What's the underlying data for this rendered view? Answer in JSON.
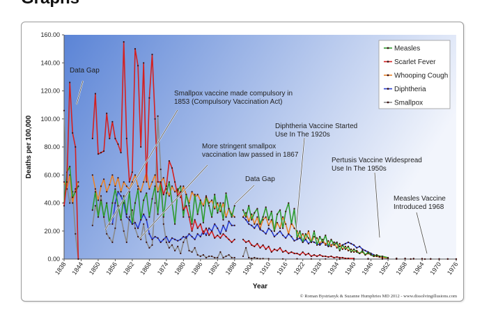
{
  "page": {
    "title": "Graphs"
  },
  "credit": "© Roman Bystrianyk & Suzanne Humphries MD 2012 - www.dissolvingillusions.com",
  "colors": {
    "plot_bg_left": "#5b84d6",
    "plot_bg_right": "#f2f5fc",
    "Measles": "#2e9a2e",
    "Scarlet Fever": "#d42020",
    "Whooping Cough": "#e8822a",
    "Diphtheria": "#2a3ed0",
    "Smallpox": "#8a8a8a"
  },
  "annotations": [
    {
      "id": "gap1",
      "lines": [
        "Data Gap"
      ]
    },
    {
      "id": "smallpox1853",
      "lines": [
        "Smallpox vaccine made compulsory in",
        "1853 (Compulsory Vaccination Act)"
      ]
    },
    {
      "id": "smallpox1867",
      "lines": [
        "More stringent smallpox",
        "vaccination law passed in 1867"
      ]
    },
    {
      "id": "gap2",
      "lines": [
        "Data Gap"
      ]
    },
    {
      "id": "diphtheria",
      "lines": [
        "Diphtheria Vaccine Started",
        "Use In The 1920s"
      ]
    },
    {
      "id": "pertussis",
      "lines": [
        "Pertusis Vaccine Widespread",
        "Use In The 1950s"
      ]
    },
    {
      "id": "measles",
      "lines": [
        "Measles Vaccine",
        "Introduced 1968"
      ]
    }
  ],
  "chart_data": {
    "type": "line",
    "title": "",
    "xlabel": "Year",
    "ylabel": "Deaths per 100,000",
    "xlim": [
      1838,
      1976
    ],
    "ylim": [
      0,
      160
    ],
    "yticks": [
      "0.00",
      "20.00",
      "40.00",
      "60.00",
      "80.00",
      "100.00",
      "120.00",
      "140.00",
      "160.00"
    ],
    "xticks": [
      "1838",
      "1844",
      "1850",
      "1856",
      "1862",
      "1868",
      "1874",
      "1880",
      "1886",
      "1892",
      "1898",
      "1904",
      "1910",
      "1916",
      "1922",
      "1928",
      "1934",
      "1940",
      "1946",
      "1952",
      "1958",
      "1964",
      "1970",
      "1976"
    ],
    "grid": false,
    "legend_position": "top-right",
    "series": [
      {
        "name": "Measles",
        "x": [
          1838,
          1839,
          1840,
          1841,
          1842,
          1843,
          1848,
          1849,
          1850,
          1851,
          1852,
          1853,
          1854,
          1855,
          1856,
          1857,
          1858,
          1859,
          1860,
          1861,
          1862,
          1863,
          1864,
          1865,
          1866,
          1867,
          1868,
          1869,
          1870,
          1871,
          1872,
          1873,
          1874,
          1875,
          1876,
          1877,
          1878,
          1879,
          1880,
          1881,
          1882,
          1883,
          1884,
          1885,
          1886,
          1887,
          1888,
          1889,
          1890,
          1891,
          1892,
          1893,
          1894,
          1895,
          1896,
          1897,
          1898,
          1901,
          1902,
          1903,
          1904,
          1905,
          1906,
          1907,
          1908,
          1909,
          1910,
          1911,
          1912,
          1913,
          1914,
          1915,
          1916,
          1917,
          1918,
          1919,
          1920,
          1921,
          1922,
          1923,
          1924,
          1925,
          1926,
          1927,
          1928,
          1929,
          1930,
          1931,
          1932,
          1933,
          1934,
          1935,
          1936,
          1937,
          1938,
          1939,
          1940,
          1941,
          1942,
          1943,
          1944,
          1945,
          1946,
          1947,
          1948,
          1949,
          1950,
          1952,
          1955,
          1958,
          1961,
          1964,
          1967,
          1970,
          1973,
          1976
        ],
        "values": [
          40,
          62,
          66,
          44,
          48,
          52,
          35,
          48,
          30,
          42,
          30,
          40,
          25,
          40,
          50,
          38,
          28,
          45,
          32,
          48,
          25,
          40,
          50,
          28,
          42,
          47,
          30,
          43,
          52,
          32,
          54,
          30,
          47,
          55,
          40,
          25,
          49,
          52,
          30,
          46,
          38,
          25,
          46,
          32,
          42,
          26,
          44,
          38,
          30,
          46,
          33,
          40,
          28,
          47,
          36,
          30,
          38,
          35,
          30,
          38,
          28,
          33,
          36,
          25,
          30,
          37,
          28,
          34,
          20,
          32,
          35,
          22,
          34,
          40,
          25,
          36,
          15,
          20,
          12,
          18,
          15,
          12,
          20,
          10,
          16,
          12,
          17,
          9,
          14,
          10,
          12,
          6,
          10,
          7,
          9,
          5,
          7,
          5,
          4,
          6,
          3,
          5,
          3,
          2,
          3,
          2,
          2,
          1,
          0.5,
          0.5,
          0.3,
          0.3,
          0.2,
          0.1,
          0.1,
          0
        ]
      },
      {
        "name": "Scarlet Fever",
        "x": [
          1838,
          1839,
          1840,
          1841,
          1842,
          1843,
          1848,
          1849,
          1850,
          1851,
          1852,
          1853,
          1854,
          1855,
          1856,
          1857,
          1858,
          1859,
          1860,
          1861,
          1862,
          1863,
          1864,
          1865,
          1866,
          1867,
          1868,
          1869,
          1870,
          1871,
          1872,
          1873,
          1874,
          1875,
          1876,
          1877,
          1878,
          1879,
          1880,
          1881,
          1882,
          1883,
          1884,
          1885,
          1886,
          1887,
          1888,
          1889,
          1890,
          1891,
          1892,
          1893,
          1894,
          1895,
          1896,
          1897,
          1898,
          1901,
          1902,
          1903,
          1904,
          1905,
          1906,
          1907,
          1908,
          1909,
          1910,
          1911,
          1912,
          1913,
          1914,
          1915,
          1916,
          1917,
          1918,
          1919,
          1920,
          1921,
          1922,
          1923,
          1924,
          1925,
          1926,
          1927,
          1928,
          1929,
          1930,
          1931,
          1932,
          1933,
          1934,
          1935,
          1936,
          1937,
          1938,
          1940,
          1945,
          1950,
          1955,
          1960,
          1965,
          1970,
          1976
        ],
        "values": [
          38,
          55,
          126,
          90,
          80,
          0,
          86,
          118,
          75,
          76,
          77,
          104,
          86,
          98,
          86,
          82,
          76,
          155,
          86,
          55,
          62,
          150,
          138,
          80,
          140,
          55,
          115,
          146,
          100,
          55,
          55,
          46,
          52,
          70,
          65,
          55,
          45,
          48,
          35,
          38,
          30,
          20,
          28,
          22,
          25,
          18,
          22,
          17,
          20,
          15,
          17,
          15,
          18,
          16,
          14,
          12,
          14,
          14,
          12,
          13,
          10,
          9,
          11,
          8,
          10,
          7,
          9,
          5,
          7,
          6,
          8,
          5,
          6,
          4,
          5,
          4,
          4,
          3,
          5,
          3,
          4,
          2,
          3,
          2,
          3,
          2,
          2,
          1.5,
          2,
          1,
          1.5,
          1,
          1,
          0.5,
          0.5,
          0.4,
          0.3,
          0.2,
          0.1,
          0.1,
          0,
          0,
          0
        ]
      },
      {
        "name": "Whooping Cough",
        "x": [
          1838,
          1839,
          1840,
          1841,
          1842,
          1843,
          1848,
          1849,
          1850,
          1851,
          1852,
          1853,
          1854,
          1855,
          1856,
          1857,
          1858,
          1859,
          1860,
          1861,
          1862,
          1863,
          1864,
          1865,
          1866,
          1867,
          1868,
          1869,
          1870,
          1871,
          1872,
          1873,
          1874,
          1875,
          1876,
          1877,
          1878,
          1879,
          1880,
          1881,
          1882,
          1883,
          1884,
          1885,
          1886,
          1887,
          1888,
          1889,
          1890,
          1891,
          1892,
          1893,
          1894,
          1895,
          1896,
          1897,
          1898,
          1901,
          1902,
          1903,
          1904,
          1905,
          1906,
          1907,
          1908,
          1909,
          1910,
          1911,
          1912,
          1913,
          1914,
          1915,
          1916,
          1917,
          1918,
          1919,
          1920,
          1921,
          1922,
          1923,
          1924,
          1925,
          1926,
          1927,
          1928,
          1929,
          1930,
          1931,
          1932,
          1933,
          1934,
          1935,
          1936,
          1937,
          1938,
          1939,
          1940,
          1941,
          1942,
          1943,
          1944,
          1945,
          1946,
          1947,
          1948,
          1949,
          1950,
          1952,
          1955,
          1958,
          1961,
          1964,
          1967,
          1970,
          1973,
          1976
        ],
        "values": [
          55,
          50,
          60,
          40,
          50,
          55,
          60,
          50,
          42,
          52,
          57,
          48,
          53,
          60,
          52,
          58,
          48,
          55,
          52,
          50,
          55,
          60,
          52,
          48,
          55,
          62,
          50,
          55,
          60,
          48,
          55,
          58,
          50,
          45,
          52,
          48,
          50,
          44,
          52,
          46,
          40,
          48,
          44,
          46,
          42,
          38,
          45,
          40,
          42,
          36,
          40,
          34,
          40,
          30,
          36,
          32,
          30,
          30,
          33,
          27,
          32,
          25,
          30,
          22,
          28,
          30,
          24,
          28,
          20,
          26,
          22,
          30,
          25,
          18,
          26,
          22,
          20,
          15,
          18,
          14,
          20,
          12,
          16,
          15,
          11,
          14,
          10,
          13,
          9,
          12,
          8,
          11,
          7,
          9,
          6,
          7,
          5,
          6,
          4,
          5,
          3,
          4,
          3,
          2,
          2,
          1.5,
          1,
          0.8,
          0.5,
          0.4,
          0.3,
          0.2,
          0.1,
          0.1,
          0.1,
          0
        ]
      },
      {
        "name": "Diphtheria",
        "x": [
          1855,
          1856,
          1857,
          1858,
          1859,
          1860,
          1861,
          1862,
          1863,
          1864,
          1865,
          1866,
          1867,
          1868,
          1869,
          1870,
          1871,
          1872,
          1873,
          1874,
          1875,
          1876,
          1877,
          1878,
          1879,
          1880,
          1881,
          1882,
          1883,
          1884,
          1885,
          1886,
          1887,
          1888,
          1889,
          1890,
          1891,
          1892,
          1893,
          1894,
          1895,
          1896,
          1897,
          1898,
          1901,
          1902,
          1903,
          1904,
          1905,
          1906,
          1907,
          1908,
          1909,
          1910,
          1911,
          1912,
          1913,
          1914,
          1915,
          1916,
          1917,
          1918,
          1919,
          1920,
          1921,
          1922,
          1923,
          1924,
          1925,
          1926,
          1927,
          1928,
          1929,
          1930,
          1931,
          1932,
          1933,
          1934,
          1935,
          1936,
          1937,
          1938,
          1939,
          1940,
          1941,
          1942,
          1943,
          1944,
          1945,
          1946,
          1947,
          1948,
          1949,
          1950,
          1952,
          1955,
          1958,
          1961,
          1964,
          1967,
          1970,
          1973,
          1976
        ],
        "values": [
          25,
          40,
          48,
          45,
          40,
          30,
          28,
          25,
          26,
          22,
          28,
          32,
          28,
          18,
          14,
          16,
          15,
          12,
          14,
          16,
          12,
          15,
          14,
          13,
          14,
          16,
          15,
          18,
          16,
          14,
          18,
          16,
          20,
          17,
          22,
          20,
          25,
          22,
          18,
          24,
          20,
          27,
          24,
          24,
          30,
          28,
          25,
          24,
          22,
          25,
          21,
          20,
          18,
          22,
          20,
          16,
          18,
          20,
          17,
          15,
          18,
          16,
          13,
          14,
          15,
          12,
          14,
          11,
          13,
          12,
          11,
          10,
          12,
          11,
          9,
          10,
          12,
          11,
          9,
          10,
          11,
          12,
          11,
          10,
          8,
          9,
          7,
          6,
          5,
          4,
          3,
          2,
          1.5,
          1,
          0.5,
          0.3,
          0.2,
          0.1,
          0.1,
          0,
          0,
          0,
          0
        ]
      },
      {
        "name": "Smallpox",
        "x": [
          1838,
          1839,
          1840,
          1841,
          1842,
          1843,
          1848,
          1849,
          1850,
          1851,
          1852,
          1853,
          1854,
          1855,
          1856,
          1857,
          1858,
          1859,
          1860,
          1861,
          1862,
          1863,
          1864,
          1865,
          1866,
          1867,
          1868,
          1869,
          1870,
          1871,
          1872,
          1873,
          1874,
          1875,
          1876,
          1877,
          1878,
          1879,
          1880,
          1881,
          1882,
          1883,
          1884,
          1885,
          1886,
          1887,
          1888,
          1889,
          1890,
          1891,
          1892,
          1893,
          1894,
          1895,
          1896,
          1897,
          1898,
          1901,
          1902,
          1903,
          1904,
          1905,
          1906,
          1907,
          1908,
          1910,
          1915,
          1920,
          1925,
          1930,
          1935,
          1940,
          1945,
          1950,
          1955,
          1960,
          1965,
          1970,
          1976
        ],
        "values": [
          106,
          52,
          40,
          48,
          18,
          0,
          24,
          38,
          32,
          45,
          30,
          18,
          15,
          12,
          22,
          38,
          30,
          20,
          12,
          30,
          35,
          22,
          16,
          14,
          25,
          12,
          8,
          10,
          40,
          102,
          64,
          25,
          12,
          8,
          10,
          6,
          9,
          4,
          12,
          16,
          6,
          5,
          8,
          3,
          2,
          3,
          1,
          2,
          2,
          1,
          1,
          5,
          1,
          2,
          3,
          1,
          1,
          2,
          8,
          1,
          0.5,
          1,
          0.5,
          0.2,
          0.3,
          0.2,
          0.1,
          0.2,
          0.1,
          0.1,
          0,
          0,
          0,
          0,
          0,
          0,
          0,
          0,
          0
        ]
      }
    ]
  }
}
